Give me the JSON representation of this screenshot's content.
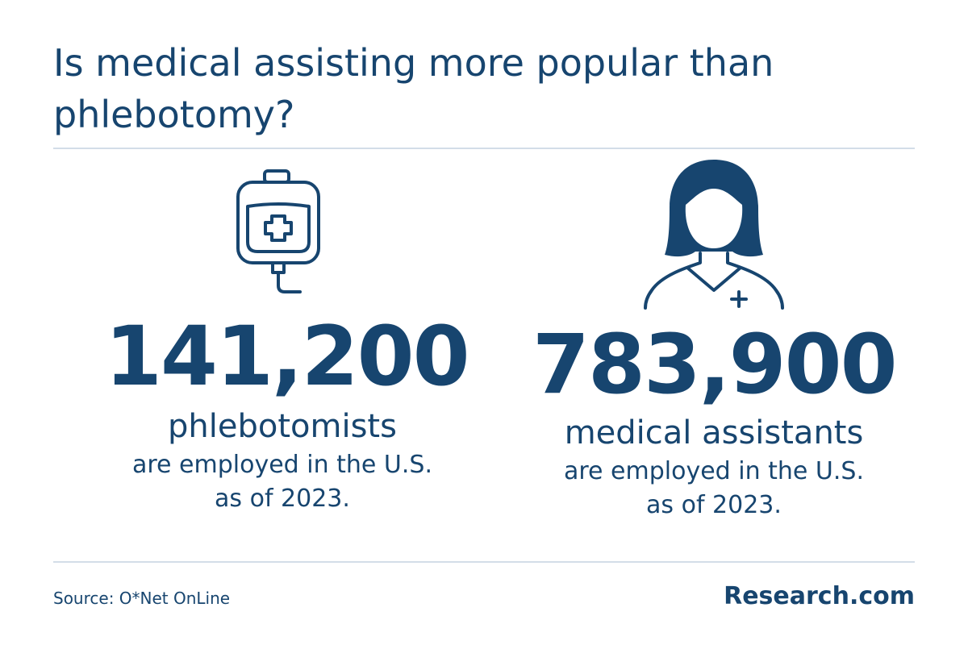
{
  "header": {
    "title": "Is medical assisting more popular than phlebotomy?"
  },
  "stats": [
    {
      "number": "141,200",
      "noun": "phlebotomists",
      "desc_line1": "are employed in the U.S.",
      "desc_line2": "as of 2023.",
      "icon": "iv-bag-icon"
    },
    {
      "number": "783,900",
      "noun": "medical assistants",
      "desc_line1": "are employed in the U.S.",
      "desc_line2": "as of 2023.",
      "icon": "medical-assistant-icon"
    }
  ],
  "footer": {
    "source": "Source: O*Net OnLine",
    "brand": "Research.com"
  },
  "colors": {
    "primary": "#17456f",
    "divider": "#d3dde8",
    "background": "#ffffff"
  }
}
